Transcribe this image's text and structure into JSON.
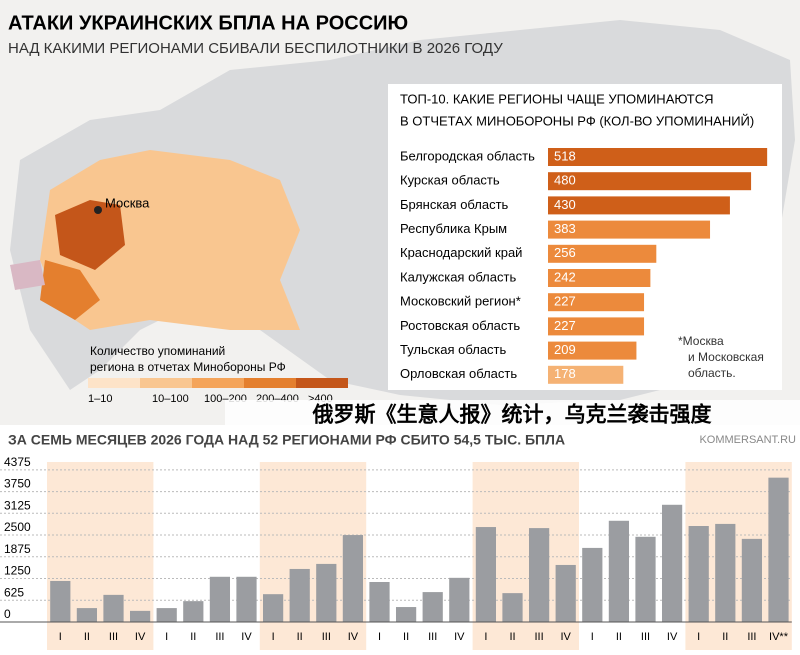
{
  "header": {
    "title": "АТАКИ УКРАИНСКИХ БПЛА НА РОССИЮ",
    "subtitle": "НАД КАКИМИ РЕГИОНАМИ СБИВАЛИ БЕСПИЛОТНИКИ В 2026 ГОДУ"
  },
  "map": {
    "city": "Москва",
    "legend_title": "Количество упоминаний региона в отчетах Минобороны РФ",
    "legend_steps": [
      {
        "label": "1–10",
        "color": "#fde3c8"
      },
      {
        "label": "10–100",
        "color": "#f9c690"
      },
      {
        "label": "100–200",
        "color": "#f4a45a"
      },
      {
        "label": "200–400",
        "color": "#e47f2e"
      },
      {
        "label": ">400",
        "color": "#c4561a"
      }
    ]
  },
  "overlay": "俄罗斯《生意人报》统计，乌克兰袭击强度",
  "source": "KOMMERSANT.RU",
  "footnote": "*Москва и Московская область.",
  "chart_data": [
    {
      "type": "hbar",
      "title": "ТОП-10. КАКИЕ РЕГИОНЫ ЧАЩЕ УПОМИНАЮТСЯ В ОТЧЕТАХ МИНОБОРОНЫ РФ (КОЛ-ВО УПОМИНАНИЙ)",
      "categories": [
        "Белгородская область",
        "Курская область",
        "Брянская область",
        "Республика Крым",
        "Краснодарский край",
        "Калужская область",
        "Московский регион*",
        "Ростовская область",
        "Тульская область",
        "Орловская область"
      ],
      "values": [
        518,
        480,
        430,
        383,
        256,
        242,
        227,
        227,
        209,
        178
      ],
      "colors": [
        "#cf5f19",
        "#cf5f19",
        "#cf5f19",
        "#ec8a3c",
        "#ec8a3c",
        "#ec8a3c",
        "#ec8a3c",
        "#ec8a3c",
        "#ec8a3c",
        "#f5b274"
      ],
      "xlim": [
        0,
        520
      ]
    },
    {
      "type": "bar",
      "title": "ЗА СЕМЬ МЕСЯЦЕВ 2026 ГОДА НАД 52 РЕГИОНАМИ РФ СБИТО 54,5 ТЫС. БПЛА",
      "categories": [
        "I",
        "II",
        "III",
        "IV",
        "I",
        "II",
        "III",
        "IV",
        "I",
        "II",
        "III",
        "IV",
        "I",
        "II",
        "III",
        "IV",
        "I",
        "II",
        "III",
        "IV",
        "I",
        "II",
        "III",
        "IV",
        "I",
        "II",
        "III",
        "IV**"
      ],
      "values": [
        1180,
        400,
        780,
        320,
        400,
        600,
        1300,
        1300,
        800,
        1525,
        1670,
        2500,
        1150,
        430,
        860,
        1270,
        2730,
        830,
        2700,
        1640,
        2130,
        2910,
        2450,
        3370,
        2760,
        2820,
        2390,
        4150
      ],
      "color": "#9b9da1",
      "ylim": [
        0,
        4600
      ],
      "yticks": [
        0,
        625,
        1250,
        1875,
        2500,
        3125,
        3750,
        4375
      ],
      "grid": true
    }
  ]
}
